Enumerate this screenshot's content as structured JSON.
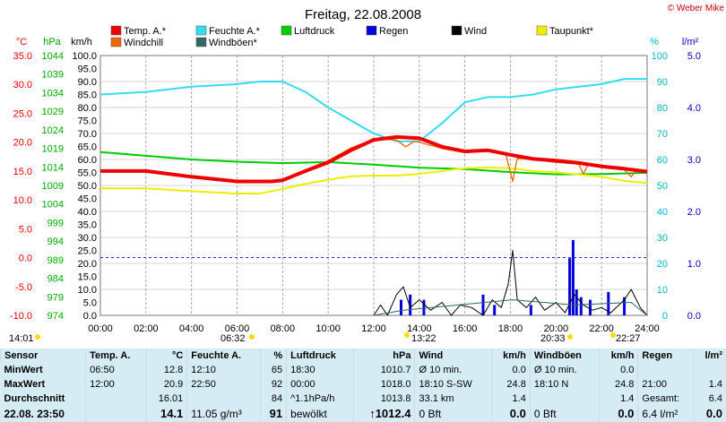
{
  "chart_data": {
    "type": "line",
    "title": "Freitag, 22.08.2008",
    "credit": "© Weber Mike",
    "axes": {
      "temp": {
        "label": "°C",
        "ticks": [
          "35.0",
          "30.0",
          "25.0",
          "20.0",
          "15.0",
          "10.0",
          "5.0",
          "0.0",
          "-5.0",
          "-10.0"
        ],
        "range": [
          -10,
          35
        ],
        "color": "#ee0000"
      },
      "pressure": {
        "label": "hPa",
        "ticks": [
          "1044",
          "1039",
          "1034",
          "1029",
          "1024",
          "1019",
          "1014",
          "1009",
          "1004",
          "999",
          "994",
          "989",
          "984",
          "979",
          "974"
        ],
        "range": [
          974,
          1044
        ],
        "color": "#00aa00"
      },
      "wind": {
        "label": "km/h",
        "ticks": [
          "100.0",
          "95.0",
          "90.0",
          "85.0",
          "80.0",
          "75.0",
          "70.0",
          "65.0",
          "60.0",
          "55.0",
          "50.0",
          "45.0",
          "40.0",
          "35.0",
          "30.0",
          "25.0",
          "20.0",
          "15.0",
          "10.0",
          "5.0",
          "0.0"
        ],
        "range": [
          0,
          100
        ],
        "color": "#000000"
      },
      "humidity": {
        "label": "%",
        "ticks": [
          "100",
          "90",
          "80",
          "70",
          "60",
          "50",
          "40",
          "30",
          "20",
          "10",
          "0"
        ],
        "range": [
          0,
          100
        ],
        "color": "#00bbcc"
      },
      "rain": {
        "label": "l/m²",
        "ticks": [
          "5.0",
          "4.0",
          "3.0",
          "2.0",
          "1.0",
          "0.0"
        ],
        "range": [
          0,
          5
        ],
        "color": "#0000cc"
      },
      "x": {
        "ticks": [
          "00:00",
          "02:00",
          "04:00",
          "06:00",
          "08:00",
          "10:00",
          "12:00",
          "14:00",
          "16:00",
          "18:00",
          "20:00",
          "22:00",
          "24:00"
        ],
        "range": [
          0,
          24
        ]
      }
    },
    "legend": [
      {
        "label": "Temp. A.*",
        "color": "#ee0000"
      },
      {
        "label": "Feuchte A.*",
        "color": "#33ddee"
      },
      {
        "label": "Luftdruck",
        "color": "#00cc00"
      },
      {
        "label": "Regen",
        "color": "#0000dd"
      },
      {
        "label": "Wind",
        "color": "#000000"
      },
      {
        "label": "Taupunkt*",
        "color": "#eeee00"
      },
      {
        "label": "Windchill",
        "color": "#ee6600"
      },
      {
        "label": "Windböen*",
        "color": "#336666"
      }
    ],
    "sun_markers": [
      {
        "label": "14:01"
      },
      {
        "label": "06:32"
      },
      {
        "label": "13:22"
      },
      {
        "label": "20:33"
      },
      {
        "label": "22:27"
      }
    ],
    "reference_line": {
      "value_temp": 0.0
    },
    "series": [
      {
        "name": "Temp. A.*",
        "axis": "temp",
        "color": "#ee0000",
        "points": [
          [
            0,
            15.0
          ],
          [
            2,
            15.0
          ],
          [
            4,
            14.0
          ],
          [
            6,
            13.2
          ],
          [
            7.5,
            13.2
          ],
          [
            8,
            13.4
          ],
          [
            9,
            15.0
          ],
          [
            10,
            16.5
          ],
          [
            11,
            18.6
          ],
          [
            12,
            20.4
          ],
          [
            13,
            20.9
          ],
          [
            14,
            20.7
          ],
          [
            15,
            19.2
          ],
          [
            16,
            18.4
          ],
          [
            17,
            18.6
          ],
          [
            18,
            17.8
          ],
          [
            19,
            17.1
          ],
          [
            20,
            16.8
          ],
          [
            21,
            16.4
          ],
          [
            22,
            15.8
          ],
          [
            23,
            15.4
          ],
          [
            24,
            14.9
          ]
        ]
      },
      {
        "name": "Windchill",
        "axis": "temp",
        "color": "#ee6600",
        "points": [
          [
            8,
            13.4
          ],
          [
            9,
            15.2
          ],
          [
            10,
            16.8
          ],
          [
            11,
            19.0
          ],
          [
            12,
            20.5
          ],
          [
            13,
            20.4
          ],
          [
            13.4,
            19.2
          ],
          [
            13.8,
            20.2
          ],
          [
            15,
            18.9
          ],
          [
            16,
            18.2
          ],
          [
            17,
            18.5
          ],
          [
            17.8,
            17.9
          ],
          [
            18.1,
            13.2
          ],
          [
            18.3,
            17.2
          ],
          [
            19,
            17.0
          ],
          [
            20,
            16.5
          ],
          [
            21,
            16.2
          ],
          [
            21.2,
            14.5
          ],
          [
            21.4,
            16.0
          ],
          [
            22,
            15.6
          ],
          [
            23,
            15.2
          ],
          [
            23.3,
            14.0
          ],
          [
            23.5,
            15.0
          ],
          [
            24,
            14.8
          ]
        ]
      },
      {
        "name": "Feuchte A.*",
        "axis": "humidity",
        "color": "#33ddee",
        "points": [
          [
            0,
            85
          ],
          [
            2,
            86
          ],
          [
            4,
            88
          ],
          [
            6,
            89
          ],
          [
            7,
            90
          ],
          [
            8,
            90
          ],
          [
            9,
            86
          ],
          [
            10,
            80
          ],
          [
            11,
            75
          ],
          [
            12,
            70
          ],
          [
            13,
            67
          ],
          [
            14,
            67
          ],
          [
            15,
            74
          ],
          [
            16,
            82
          ],
          [
            17,
            84
          ],
          [
            18,
            84
          ],
          [
            19,
            85
          ],
          [
            20,
            87
          ],
          [
            21,
            88
          ],
          [
            22,
            89
          ],
          [
            23,
            91
          ],
          [
            24,
            91
          ]
        ]
      },
      {
        "name": "Taupunkt*",
        "axis": "temp",
        "color": "#eeee00",
        "points": [
          [
            0,
            12.0
          ],
          [
            2,
            12.0
          ],
          [
            4,
            11.5
          ],
          [
            6,
            11.1
          ],
          [
            7,
            11.1
          ],
          [
            8,
            11.9
          ],
          [
            9,
            12.8
          ],
          [
            10,
            13.5
          ],
          [
            11,
            14.1
          ],
          [
            12,
            14.2
          ],
          [
            13,
            14.2
          ],
          [
            14,
            14.5
          ],
          [
            15,
            15.0
          ],
          [
            16,
            15.5
          ],
          [
            17,
            15.6
          ],
          [
            18,
            15.5
          ],
          [
            19,
            15.0
          ],
          [
            20,
            14.8
          ],
          [
            21,
            14.4
          ],
          [
            22,
            14.0
          ],
          [
            23,
            13.3
          ],
          [
            24,
            12.9
          ]
        ]
      },
      {
        "name": "Luftdruck",
        "axis": "pressure",
        "color": "#00cc00",
        "points": [
          [
            0,
            1018.0
          ],
          [
            2,
            1017.0
          ],
          [
            4,
            1016.0
          ],
          [
            6,
            1015.4
          ],
          [
            8,
            1015.0
          ],
          [
            10,
            1015.3
          ],
          [
            12,
            1014.6
          ],
          [
            14,
            1013.8
          ],
          [
            16,
            1013.4
          ],
          [
            18,
            1012.6
          ],
          [
            20,
            1012.0
          ],
          [
            22,
            1012.1
          ],
          [
            24,
            1012.4
          ]
        ]
      },
      {
        "name": "Wind",
        "axis": "wind",
        "color": "#000000",
        "points": [
          [
            12,
            0
          ],
          [
            12.3,
            4
          ],
          [
            12.6,
            0
          ],
          [
            13,
            8
          ],
          [
            13.3,
            11
          ],
          [
            13.6,
            3
          ],
          [
            14,
            6
          ],
          [
            14.5,
            2
          ],
          [
            15,
            5
          ],
          [
            15.4,
            0
          ],
          [
            15.8,
            4
          ],
          [
            16.3,
            3
          ],
          [
            16.8,
            0
          ],
          [
            17.2,
            6
          ],
          [
            17.6,
            3
          ],
          [
            17.9,
            12
          ],
          [
            18.1,
            25
          ],
          [
            18.3,
            6
          ],
          [
            18.7,
            3
          ],
          [
            19.1,
            7
          ],
          [
            19.5,
            2
          ],
          [
            20,
            5
          ],
          [
            20.4,
            1
          ],
          [
            20.8,
            8
          ],
          [
            21.2,
            4
          ],
          [
            21.6,
            2
          ],
          [
            22,
            3
          ],
          [
            22.4,
            1
          ],
          [
            23,
            6
          ],
          [
            23.3,
            10
          ],
          [
            23.7,
            3
          ],
          [
            24,
            0
          ]
        ]
      },
      {
        "name": "Windböen*",
        "axis": "wind",
        "color": "#336666",
        "points": [
          [
            12,
            0
          ],
          [
            13.3,
            2
          ],
          [
            18.1,
            6
          ],
          [
            20.8,
            4
          ],
          [
            23.3,
            5
          ],
          [
            24,
            0
          ]
        ]
      },
      {
        "name": "Regen",
        "axis": "rain",
        "color": "#0000dd",
        "type": "bar",
        "points": [
          [
            13.2,
            0.3
          ],
          [
            13.6,
            0.4
          ],
          [
            14.2,
            0.3
          ],
          [
            16.8,
            0.4
          ],
          [
            17.3,
            0.2
          ],
          [
            18.9,
            0.2
          ],
          [
            20.6,
            1.1
          ],
          [
            20.75,
            1.45
          ],
          [
            20.9,
            0.5
          ],
          [
            21.1,
            0.35
          ],
          [
            21.5,
            0.3
          ],
          [
            22.3,
            0.45
          ],
          [
            23.0,
            0.35
          ]
        ]
      }
    ]
  },
  "summary": {
    "headers": [
      "Sensor",
      "Temp. A.",
      "°C",
      "Feuchte A.",
      "%",
      "Luftdruck",
      "hPa",
      "Wind",
      "km/h",
      "Windböen",
      "km/h",
      "Regen",
      "l/m²"
    ],
    "rows": [
      {
        "label": "MinWert",
        "cells": [
          "06:50",
          "12.8",
          "12:10",
          "65",
          "18:30",
          "1010.7",
          "Ø 10 min.",
          "0.0",
          "Ø 10 min.",
          "0.0",
          "",
          ""
        ]
      },
      {
        "label": "MaxWert",
        "cells": [
          "12:00",
          "20.9",
          "22:50",
          "92",
          "00:00",
          "1018.0",
          "18:10   S-SW",
          "24.8",
          "18:10   N",
          "24.8",
          "21:00",
          "1.4"
        ]
      },
      {
        "label": "Durchschnitt",
        "cells": [
          "",
          "16.01",
          "",
          "84",
          "^1.1hPa/h",
          "1013.8",
          "33.1 km",
          "1.4",
          "",
          "1.4",
          "Gesamt:",
          "6.4"
        ]
      },
      {
        "label": "22.08.  23:50",
        "cells": [
          "",
          "14.1",
          "11.05 g/m³",
          "91",
          "bewölkt",
          "↑1012.4",
          "0 Bft",
          "0.0",
          "0 Bft",
          "0.0",
          "6.4 l/m²",
          "0.0"
        ]
      }
    ]
  }
}
